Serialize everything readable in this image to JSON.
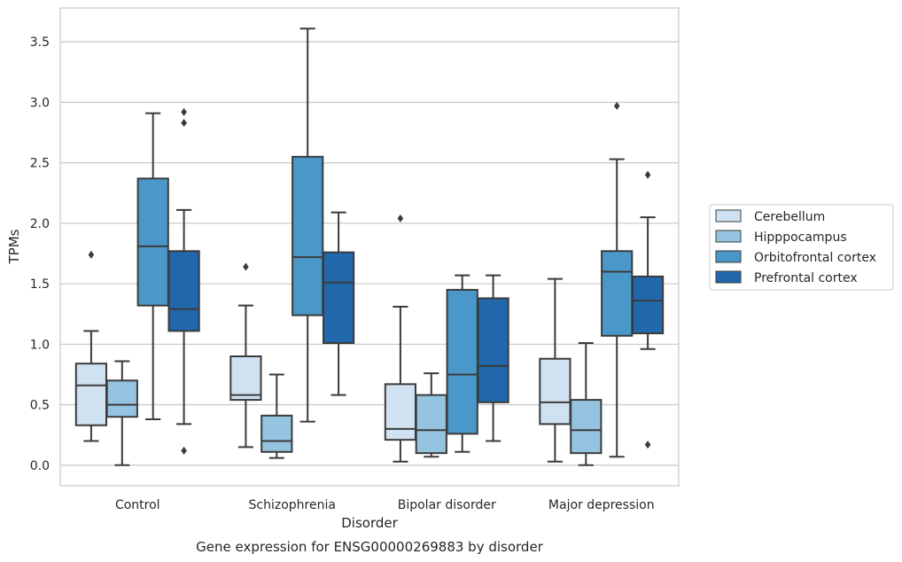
{
  "chart_data": {
    "type": "box",
    "categories": [
      "Control",
      "Schizophrenia",
      "Bipolar disorder",
      "Major depression"
    ],
    "xlabel": "Disorder",
    "ylabel": "TPMs",
    "caption": "Gene expression for ENSG00000269883 by disorder",
    "ylim": [
      -0.17,
      3.78
    ],
    "yticks": [
      0.0,
      0.5,
      1.0,
      1.5,
      2.0,
      2.5,
      3.0,
      3.5
    ],
    "ytick_labels": [
      "0.0",
      "0.5",
      "1.0",
      "1.5",
      "2.0",
      "2.5",
      "3.0",
      "3.5"
    ],
    "grid": true,
    "legend_position": "right",
    "series": [
      {
        "name": "Cerebellum",
        "color": "#d0e1f2",
        "boxes": [
          {
            "whisker_low": 0.2,
            "q1": 0.33,
            "median": 0.66,
            "q3": 0.84,
            "whisker_high": 1.11,
            "outliers": [
              1.74
            ]
          },
          {
            "whisker_low": 0.15,
            "q1": 0.54,
            "median": 0.58,
            "q3": 0.9,
            "whisker_high": 1.32,
            "outliers": [
              1.64
            ]
          },
          {
            "whisker_low": 0.03,
            "q1": 0.21,
            "median": 0.3,
            "q3": 0.67,
            "whisker_high": 1.31,
            "outliers": [
              2.04
            ]
          },
          {
            "whisker_low": 0.03,
            "q1": 0.34,
            "median": 0.52,
            "q3": 0.88,
            "whisker_high": 1.54,
            "outliers": []
          }
        ]
      },
      {
        "name": "Hipppocampus",
        "color": "#94c4df",
        "boxes": [
          {
            "whisker_low": 0.0,
            "q1": 0.4,
            "median": 0.5,
            "q3": 0.7,
            "whisker_high": 0.86,
            "outliers": []
          },
          {
            "whisker_low": 0.06,
            "q1": 0.11,
            "median": 0.2,
            "q3": 0.41,
            "whisker_high": 0.75,
            "outliers": []
          },
          {
            "whisker_low": 0.07,
            "q1": 0.1,
            "median": 0.29,
            "q3": 0.58,
            "whisker_high": 0.76,
            "outliers": []
          },
          {
            "whisker_low": 0.0,
            "q1": 0.1,
            "median": 0.29,
            "q3": 0.54,
            "whisker_high": 1.01,
            "outliers": []
          }
        ]
      },
      {
        "name": "Orbitofrontal cortex",
        "color": "#4a98c9",
        "boxes": [
          {
            "whisker_low": 0.38,
            "q1": 1.32,
            "median": 1.81,
            "q3": 2.37,
            "whisker_high": 2.91,
            "outliers": []
          },
          {
            "whisker_low": 0.36,
            "q1": 1.24,
            "median": 1.72,
            "q3": 2.55,
            "whisker_high": 3.61,
            "outliers": []
          },
          {
            "whisker_low": 0.11,
            "q1": 0.26,
            "median": 0.75,
            "q3": 1.45,
            "whisker_high": 1.57,
            "outliers": []
          },
          {
            "whisker_low": 0.07,
            "q1": 1.07,
            "median": 1.6,
            "q3": 1.77,
            "whisker_high": 2.53,
            "outliers": [
              2.97
            ]
          }
        ]
      },
      {
        "name": "Prefrontal cortex",
        "color": "#2167ac",
        "boxes": [
          {
            "whisker_low": 0.34,
            "q1": 1.11,
            "median": 1.29,
            "q3": 1.77,
            "whisker_high": 2.11,
            "outliers": [
              0.12,
              2.83,
              2.92
            ]
          },
          {
            "whisker_low": 0.58,
            "q1": 1.01,
            "median": 1.51,
            "q3": 1.76,
            "whisker_high": 2.09,
            "outliers": []
          },
          {
            "whisker_low": 0.2,
            "q1": 0.52,
            "median": 0.82,
            "q3": 1.38,
            "whisker_high": 1.57,
            "outliers": []
          },
          {
            "whisker_low": 0.96,
            "q1": 1.09,
            "median": 1.36,
            "q3": 1.56,
            "whisker_high": 2.05,
            "outliers": [
              0.17,
              2.4
            ]
          }
        ]
      }
    ]
  }
}
